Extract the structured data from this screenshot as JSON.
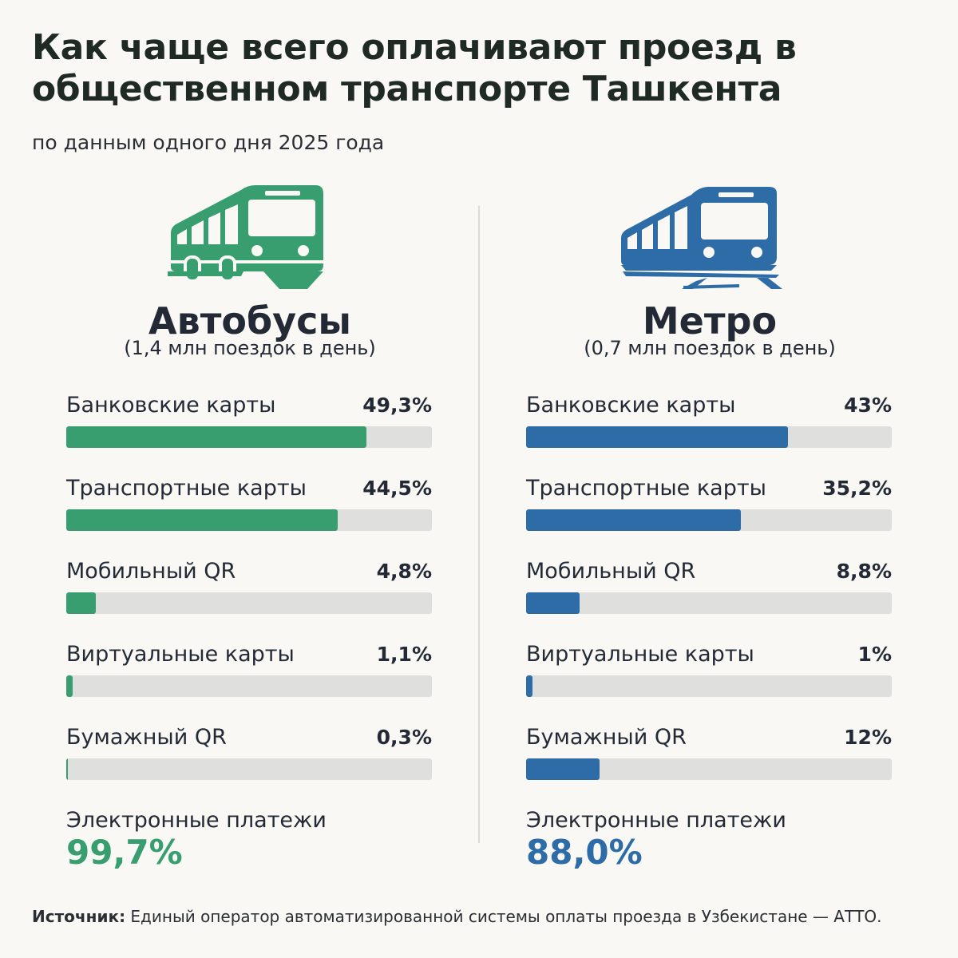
{
  "title": "Как чаще всего оплачивают проезд в общественном транспорте Ташкента",
  "subtitle": "по данным одного дня 2025 года",
  "colors": {
    "bus": "#389e6f",
    "metro": "#2d6ca6",
    "track": "#dfe0dd"
  },
  "chart_data": [
    {
      "type": "bar",
      "orientation": "horizontal",
      "title": "Автобусы",
      "subtitle": "(1,4 млн поездок в день)",
      "icon": "bus-icon",
      "categories": [
        "Банковские карты",
        "Транспортные карты",
        "Мобильный QR",
        "Виртуальные карты",
        "Бумажный QR"
      ],
      "values": [
        49.3,
        44.5,
        4.8,
        1.1,
        0.3
      ],
      "value_labels": [
        "49,3%",
        "44,5%",
        "4,8%",
        "1,1%",
        "0,3%"
      ],
      "xlim": [
        0,
        60
      ],
      "summary_label": "Электронные платежи",
      "summary_value": "99,7%"
    },
    {
      "type": "bar",
      "orientation": "horizontal",
      "title": "Метро",
      "subtitle": "(0,7 млн поездок в день)",
      "icon": "metro-train-icon",
      "categories": [
        "Банковские карты",
        "Транспортные карты",
        "Мобильный QR",
        "Виртуальные карты",
        "Бумажный QR"
      ],
      "values": [
        43,
        35.2,
        8.8,
        1,
        12
      ],
      "value_labels": [
        "43%",
        "35,2%",
        "8,8%",
        "1%",
        "12%"
      ],
      "xlim": [
        0,
        60
      ],
      "summary_label": "Электронные платежи",
      "summary_value": "88,0%"
    }
  ],
  "source": {
    "label": "Источник:",
    "text": " Единый оператор автоматизированной системы оплаты проезда в Узбекистане — АТТО."
  }
}
